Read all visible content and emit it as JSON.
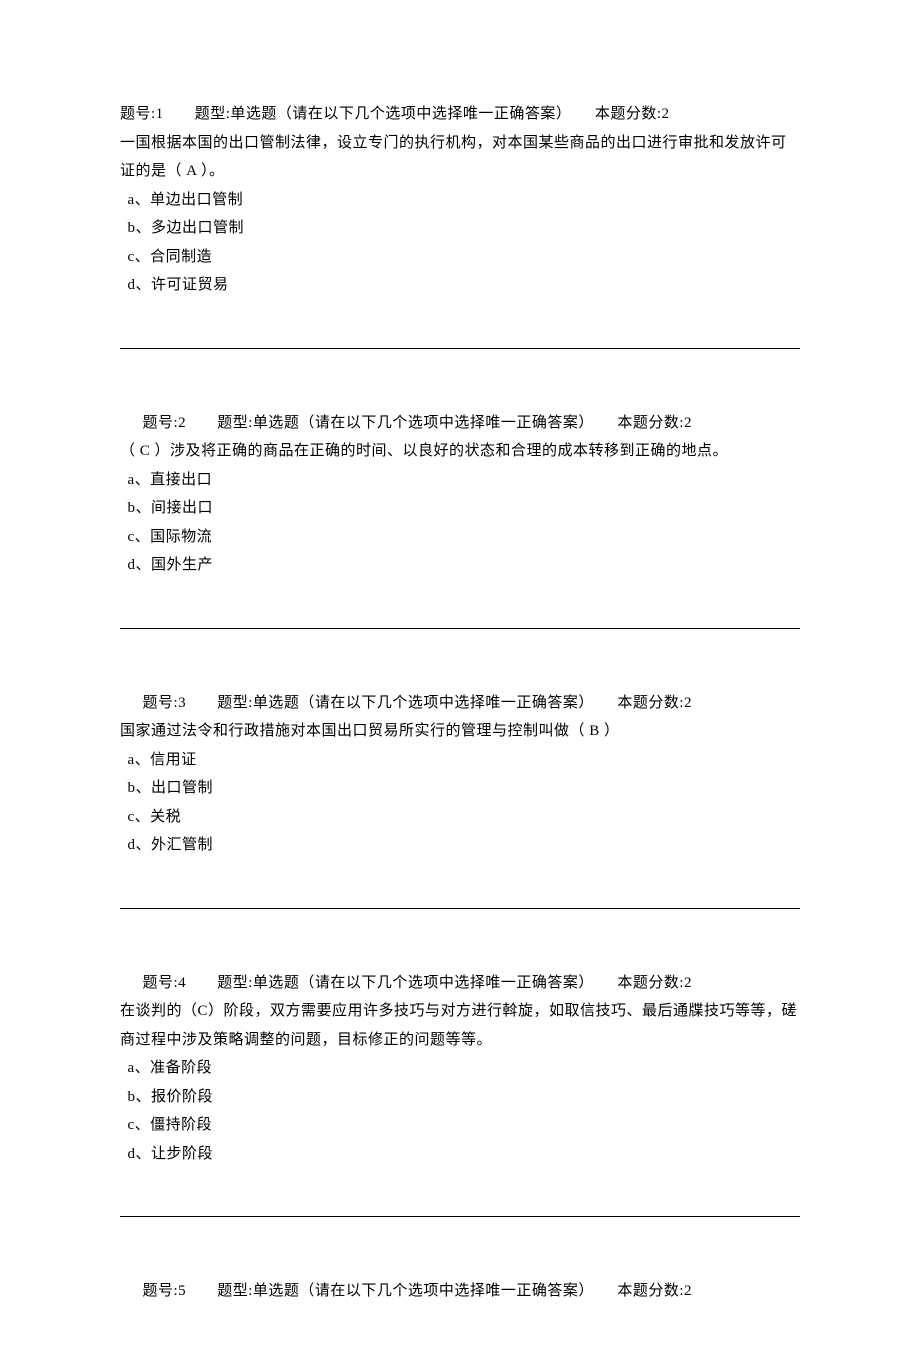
{
  "questions": [
    {
      "header_prefix": "题号:1",
      "type_label": "题型:单选题（请在以下几个选项中选择唯一正确答案）",
      "score_label": "本题分数:2",
      "stem": "一国根据本国的出口管制法律，设立专门的执行机构，对本国某些商品的出口进行审批和发放许可证的是（ A ）。",
      "options": {
        "a": "a、单边出口管制",
        "b": "b、多边出口管制",
        "c": "c、合同制造",
        "d": "d、许可证贸易"
      },
      "indent": false
    },
    {
      "header_prefix": "题号:2",
      "type_label": "题型:单选题（请在以下几个选项中选择唯一正确答案）",
      "score_label": "本题分数:2",
      "stem": "（ C ）涉及将正确的商品在正确的时间、以良好的状态和合理的成本转移到正确的地点。",
      "options": {
        "a": "a、直接出口",
        "b": "b、间接出口",
        "c": "c、国际物流",
        "d": "d、国外生产"
      },
      "indent": true
    },
    {
      "header_prefix": "题号:3",
      "type_label": "题型:单选题（请在以下几个选项中选择唯一正确答案）",
      "score_label": "本题分数:2",
      "stem": "国家通过法令和行政措施对本国出口贸易所实行的管理与控制叫做（ B ）",
      "options": {
        "a": "a、信用证",
        "b": "b、出口管制",
        "c": "c、关税",
        "d": "d、外汇管制"
      },
      "indent": true
    },
    {
      "header_prefix": "题号:4",
      "type_label": "题型:单选题（请在以下几个选项中选择唯一正确答案）",
      "score_label": "本题分数:2",
      "stem": "在谈判的（C）阶段，双方需要应用许多技巧与对方进行斡旋，如取信技巧、最后通牒技巧等等，磋商过程中涉及策略调整的问题，目标修正的问题等等。",
      "options": {
        "a": "a、准备阶段",
        "b": "b、报价阶段",
        "c": "c、僵持阶段",
        "d": "d、让步阶段"
      },
      "indent": true
    },
    {
      "header_prefix": "题号:5",
      "type_label": "题型:单选题（请在以下几个选项中选择唯一正确答案）",
      "score_label": "本题分数:2",
      "stem": "",
      "options": {},
      "indent": true
    }
  ],
  "header_sep": "　　"
}
